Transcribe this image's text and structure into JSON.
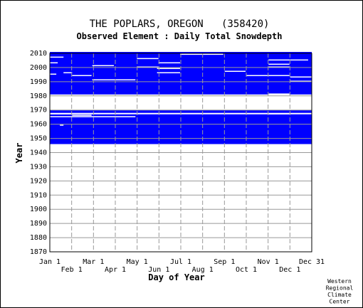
{
  "chart_data": {
    "type": "heatmap",
    "title": "THE POPLARS, OREGON   (358420)",
    "subtitle": "Observed Element : Daily Total Snowdepth",
    "xlabel": "Day of Year",
    "ylabel": "Year",
    "ylim": [
      1870,
      2010
    ],
    "yticks": [
      1870,
      1880,
      1890,
      1900,
      1910,
      1920,
      1930,
      1940,
      1950,
      1960,
      1970,
      1980,
      1990,
      2000,
      2010
    ],
    "xticks_top": [
      "Jan 1",
      "Mar 1",
      "May 1",
      "Jul 1",
      "Sep 1",
      "Nov 1",
      "Dec 31"
    ],
    "xticks_bottom": [
      "Feb 1",
      "Apr 1",
      "Jun 1",
      "Aug 1",
      "Oct 1",
      "Dec 1"
    ],
    "grid": true,
    "data_color": "#0000ff",
    "legend": "none",
    "data_blocks": [
      {
        "years": [
          1981,
          2010
        ],
        "coverage": "observations recorded, scattered missing days"
      },
      {
        "years": [
          1968,
          1969
        ],
        "coverage": "partial"
      },
      {
        "years": [
          1946,
          1966
        ],
        "coverage": "observations recorded, few missing days"
      }
    ],
    "missing_segments": [
      {
        "year": 2009,
        "days": [
          182,
          242
        ]
      },
      {
        "year": 2007,
        "days": [
          1,
          20
        ]
      },
      {
        "year": 2006,
        "days": [
          122,
          152
        ]
      },
      {
        "year": 2005,
        "days": [
          305,
          360
        ]
      },
      {
        "year": 2003,
        "days": [
          1,
          12
        ]
      },
      {
        "year": 2003,
        "days": [
          152,
          182
        ]
      },
      {
        "year": 2002,
        "days": [
          305,
          334
        ]
      },
      {
        "year": 2001,
        "days": [
          60,
          90
        ]
      },
      {
        "year": 2000,
        "days": [
          122,
          152
        ]
      },
      {
        "year": 2000,
        "days": [
          305,
          334
        ]
      },
      {
        "year": 1999,
        "days": [
          150,
          182
        ]
      },
      {
        "year": 1997,
        "days": [
          244,
          273
        ]
      },
      {
        "year": 1996,
        "days": [
          150,
          182
        ]
      },
      {
        "year": 1996,
        "days": [
          20,
          32
        ]
      },
      {
        "year": 1995,
        "days": [
          1,
          10
        ]
      },
      {
        "year": 1994,
        "days": [
          32,
          59
        ]
      },
      {
        "year": 1994,
        "days": [
          274,
          334
        ]
      },
      {
        "year": 1993,
        "days": [
          335,
          365
        ]
      },
      {
        "year": 1991,
        "days": [
          60,
          120
        ]
      },
      {
        "year": 1990,
        "days": [
          335,
          365
        ]
      },
      {
        "year": 1981,
        "days": [
          305,
          334
        ]
      },
      {
        "year": 1967,
        "days": [
          1,
          32
        ]
      },
      {
        "year": 1967,
        "days": [
          305,
          334
        ]
      },
      {
        "year": 1966,
        "days": [
          32,
          59
        ]
      },
      {
        "year": 1965,
        "days": [
          1,
          120
        ]
      },
      {
        "year": 1959,
        "days": [
          15,
          20
        ]
      }
    ]
  },
  "credit": [
    "Western",
    "Regional",
    "Climate",
    "Center"
  ]
}
